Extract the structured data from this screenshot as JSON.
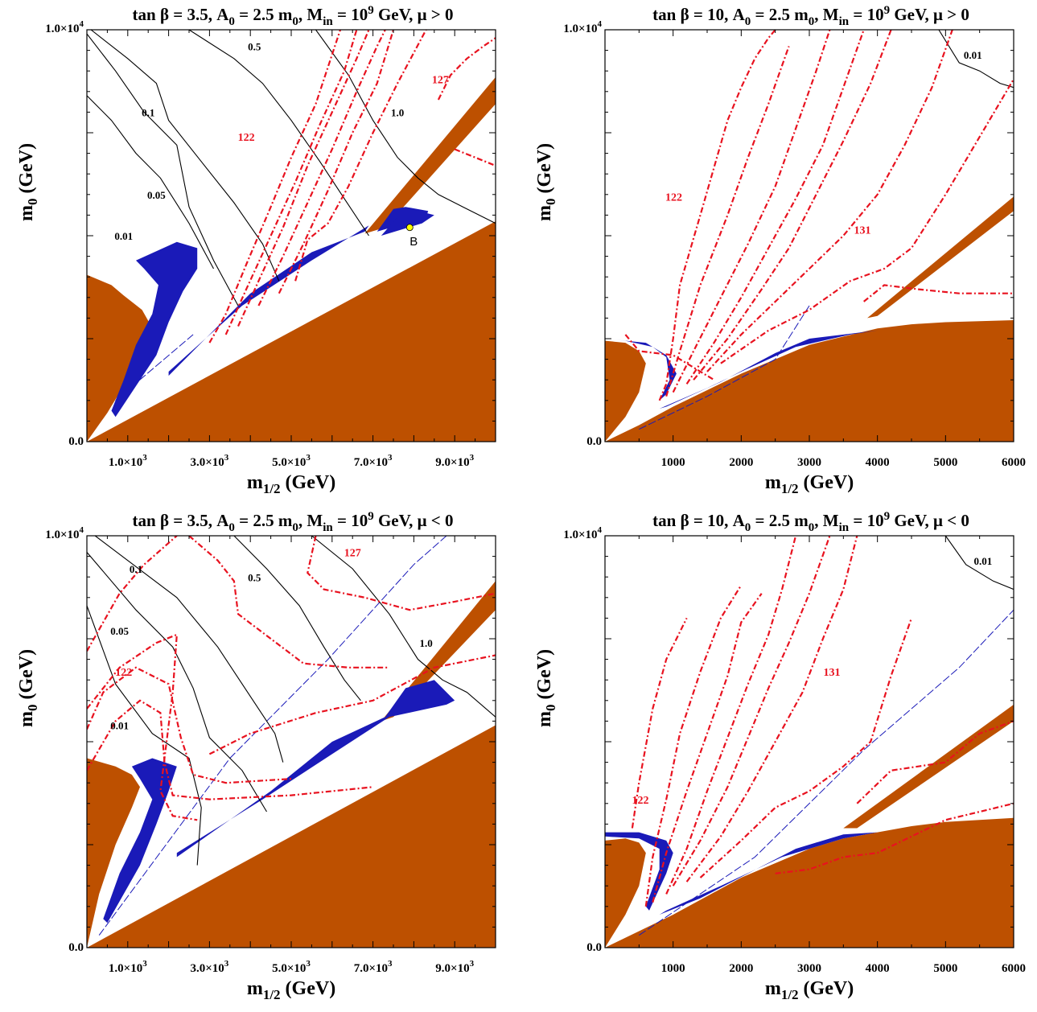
{
  "colors": {
    "excluded_region": "#bd5000",
    "relic_density_band": "#1a1ab8",
    "higgs_mass_contour": "#e8121f",
    "tau_contour": "#000000",
    "benchmark_point": "#ffff00"
  },
  "chart_data": [
    {
      "type": "contour",
      "title": {
        "lead": "tan β  = 3.5, A",
        "a_sub": "0",
        "mid": " = 2.5 m",
        "m_sub": "0",
        "min_pre": ", M",
        "min_sub": "in",
        "min_val": " = 10",
        "exp": "9",
        "tail": " GeV, μ > 0"
      },
      "xlabel": {
        "base": "m",
        "sub": "1/2",
        "unit": " (GeV)"
      },
      "ylabel": {
        "base": "m",
        "sub": "0",
        "unit": " (GeV)"
      },
      "xlim": [
        0,
        10000
      ],
      "ylim": [
        0,
        10000
      ],
      "x_ticks": [
        {
          "mant": "1.0×10",
          "exp": "3",
          "value": 1000
        },
        {
          "mant": "3.0×10",
          "exp": "3",
          "value": 3000
        },
        {
          "mant": "5.0×10",
          "exp": "3",
          "value": 5000
        },
        {
          "mant": "7.0×10",
          "exp": "3",
          "value": 7000
        },
        {
          "mant": "9.0×10",
          "exp": "3",
          "value": 9000
        }
      ],
      "y_ticks": [
        {
          "mant": "0.0",
          "value": 0
        },
        {
          "mant": "1.0×10",
          "exp": "4",
          "value": 10000
        }
      ],
      "higgs_labels": [
        {
          "text": "122",
          "x": 3900,
          "y": 7300
        },
        {
          "text": "127",
          "x": 8650,
          "y": 8700
        }
      ],
      "tau_labels": [
        {
          "text": "0.01",
          "x": 900,
          "y": 4900
        },
        {
          "text": "0.05",
          "x": 1700,
          "y": 5900
        },
        {
          "text": "0.1",
          "x": 1500,
          "y": 7900
        },
        {
          "text": "0.5",
          "x": 4100,
          "y": 9500
        },
        {
          "text": "1.0",
          "x": 7600,
          "y": 7900
        }
      ],
      "benchmark": {
        "label": "B",
        "x": 7900,
        "y": 5200
      }
    },
    {
      "type": "contour",
      "title": {
        "lead": "tan β  = 10, A",
        "a_sub": "0",
        "mid": " = 2.5 m",
        "m_sub": "0",
        "min_pre": ", M",
        "min_sub": "in",
        "min_val": " = 10",
        "exp": "9",
        "tail": " GeV, μ > 0"
      },
      "xlabel": {
        "base": "m",
        "sub": "1/2",
        "unit": " (GeV)"
      },
      "ylabel": {
        "base": "m",
        "sub": "0",
        "unit": " (GeV)"
      },
      "xlim": [
        0,
        6000
      ],
      "ylim": [
        0,
        10000
      ],
      "x_ticks": [
        {
          "mant": "1000",
          "value": 1000
        },
        {
          "mant": "2000",
          "value": 2000
        },
        {
          "mant": "3000",
          "value": 3000
        },
        {
          "mant": "4000",
          "value": 4000
        },
        {
          "mant": "5000",
          "value": 5000
        },
        {
          "mant": "6000",
          "value": 6000
        }
      ],
      "y_ticks": [
        {
          "mant": "0.0",
          "value": 0
        },
        {
          "mant": "1.0×10",
          "exp": "4",
          "value": 10000
        }
      ],
      "higgs_labels": [
        {
          "text": "122",
          "x": 1010,
          "y": 5850
        },
        {
          "text": "131",
          "x": 3780,
          "y": 5050
        }
      ],
      "tau_labels": [
        {
          "text": "0.01",
          "x": 5400,
          "y": 9300
        }
      ],
      "benchmark": null
    },
    {
      "type": "contour",
      "title": {
        "lead": "tan β  = 3.5, A",
        "a_sub": "0",
        "mid": " = 2.5 m",
        "m_sub": "0",
        "min_pre": ", M",
        "min_sub": "in",
        "min_val": " = 10",
        "exp": "9",
        "tail": " GeV, μ < 0"
      },
      "xlabel": {
        "base": "m",
        "sub": "1/2",
        "unit": " (GeV)"
      },
      "ylabel": {
        "base": "m",
        "sub": "0",
        "unit": " (GeV)"
      },
      "xlim": [
        0,
        10000
      ],
      "ylim": [
        0,
        10000
      ],
      "x_ticks": [
        {
          "mant": "1.0×10",
          "exp": "3",
          "value": 1000
        },
        {
          "mant": "3.0×10",
          "exp": "3",
          "value": 3000
        },
        {
          "mant": "5.0×10",
          "exp": "3",
          "value": 5000
        },
        {
          "mant": "7.0×10",
          "exp": "3",
          "value": 7000
        },
        {
          "mant": "9.0×10",
          "exp": "3",
          "value": 9000
        }
      ],
      "y_ticks": [
        {
          "mant": "0.0",
          "value": 0
        },
        {
          "mant": "1.0×10",
          "exp": "4",
          "value": 10000
        }
      ],
      "higgs_labels": [
        {
          "text": "122",
          "x": 900,
          "y": 6600
        },
        {
          "text": "127",
          "x": 6500,
          "y": 9500
        }
      ],
      "tau_labels": [
        {
          "text": "0.01",
          "x": 800,
          "y": 5300
        },
        {
          "text": "0.05",
          "x": 800,
          "y": 7600
        },
        {
          "text": "0.1",
          "x": 1200,
          "y": 9100
        },
        {
          "text": "0.5",
          "x": 4100,
          "y": 8900
        },
        {
          "text": "1.0",
          "x": 8300,
          "y": 7300
        }
      ],
      "benchmark": null
    },
    {
      "type": "contour",
      "title": {
        "lead": "tan β  = 10, A",
        "a_sub": "0",
        "mid": " = 2.5 m",
        "m_sub": "0",
        "min_pre": ", M",
        "min_sub": "in",
        "min_val": " = 10",
        "exp": "9",
        "tail": " GeV, μ < 0"
      },
      "xlabel": {
        "base": "m",
        "sub": "1/2",
        "unit": " (GeV)"
      },
      "ylabel": {
        "base": "m",
        "sub": "0",
        "unit": " (GeV)"
      },
      "xlim": [
        0,
        6000
      ],
      "ylim": [
        0,
        10000
      ],
      "x_ticks": [
        {
          "mant": "1000",
          "value": 1000
        },
        {
          "mant": "2000",
          "value": 2000
        },
        {
          "mant": "3000",
          "value": 3000
        },
        {
          "mant": "4000",
          "value": 4000
        },
        {
          "mant": "5000",
          "value": 5000
        },
        {
          "mant": "6000",
          "value": 6000
        }
      ],
      "y_ticks": [
        {
          "mant": "0.0",
          "value": 0
        },
        {
          "mant": "1.0×10",
          "exp": "4",
          "value": 10000
        }
      ],
      "higgs_labels": [
        {
          "text": "122",
          "x": 520,
          "y": 3500
        },
        {
          "text": "131",
          "x": 3330,
          "y": 6600
        }
      ],
      "tau_labels": [
        {
          "text": "0.01",
          "x": 5550,
          "y": 9300
        }
      ],
      "benchmark": null
    }
  ]
}
